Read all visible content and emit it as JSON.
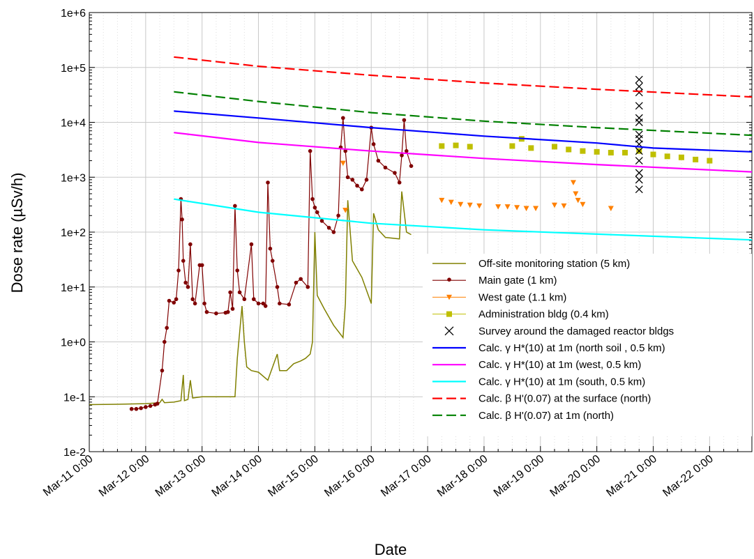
{
  "chart_data": {
    "type": "line",
    "xlabel": "Date",
    "ylabel": "Dose rate (µSv/h)",
    "yscale": "log",
    "ylim": [
      0.01,
      1000000
    ],
    "xlim": [
      "2011-03-11 00:00",
      "2011-03-22 18:00"
    ],
    "x_tick_labels": [
      "Mar-11 0:00",
      "Mar-12 0:00",
      "Mar-13 0:00",
      "Mar-14 0:00",
      "Mar-15 0:00",
      "Mar-16 0:00",
      "Mar-17 0:00",
      "Mar-18 0:00",
      "Mar-19 0:00",
      "Mar-20 0:00",
      "Mar-21 0:00",
      "Mar-22 0:00"
    ],
    "y_tick_labels": [
      "1e-2",
      "1e-1",
      "1e+0",
      "1e+1",
      "1e+2",
      "1e+3",
      "1e+4",
      "1e+5",
      "1e+6"
    ],
    "grid": true,
    "legend_position": "bottom-right",
    "series": [
      {
        "name": "Off-site monitoring station (5 km)",
        "color": "#808000",
        "style": "line",
        "marker": "none",
        "points": [
          [
            "2011-03-11 00:00",
            0.072
          ],
          [
            "2011-03-11 12:00",
            0.073
          ],
          [
            "2011-03-12 00:00",
            0.075
          ],
          [
            "2011-03-12 06:00",
            0.078
          ],
          [
            "2011-03-12 07:00",
            0.09
          ],
          [
            "2011-03-12 08:00",
            0.078
          ],
          [
            "2011-03-12 12:00",
            0.08
          ],
          [
            "2011-03-12 15:00",
            0.085
          ],
          [
            "2011-03-12 16:00",
            0.25
          ],
          [
            "2011-03-12 16:30",
            0.085
          ],
          [
            "2011-03-12 18:00",
            0.09
          ],
          [
            "2011-03-12 19:00",
            0.2
          ],
          [
            "2011-03-12 20:00",
            0.095
          ],
          [
            "2011-03-13 00:00",
            0.1
          ],
          [
            "2011-03-13 12:00",
            0.1
          ],
          [
            "2011-03-13 14:00",
            0.1
          ],
          [
            "2011-03-13 15:00",
            0.5
          ],
          [
            "2011-03-13 16:00",
            1.5
          ],
          [
            "2011-03-13 17:00",
            4.5
          ],
          [
            "2011-03-13 18:00",
            1.0
          ],
          [
            "2011-03-13 19:00",
            0.35
          ],
          [
            "2011-03-13 21:00",
            0.3
          ],
          [
            "2011-03-14 00:00",
            0.28
          ],
          [
            "2011-03-14 04:00",
            0.2
          ],
          [
            "2011-03-14 08:00",
            0.6
          ],
          [
            "2011-03-14 09:00",
            0.3
          ],
          [
            "2011-03-14 12:00",
            0.3
          ],
          [
            "2011-03-14 15:00",
            0.4
          ],
          [
            "2011-03-14 18:00",
            0.45
          ],
          [
            "2011-03-14 20:00",
            0.5
          ],
          [
            "2011-03-14 22:00",
            0.6
          ],
          [
            "2011-03-14 23:00",
            1.0
          ],
          [
            "2011-03-15 00:00",
            100
          ],
          [
            "2011-03-15 01:00",
            7
          ],
          [
            "2011-03-15 04:00",
            4
          ],
          [
            "2011-03-15 08:00",
            2
          ],
          [
            "2011-03-15 12:00",
            1.2
          ],
          [
            "2011-03-15 13:00",
            5
          ],
          [
            "2011-03-15 14:00",
            380
          ],
          [
            "2011-03-15 16:00",
            30
          ],
          [
            "2011-03-15 20:00",
            15
          ],
          [
            "2011-03-16 00:00",
            5
          ],
          [
            "2011-03-16 01:00",
            220
          ],
          [
            "2011-03-16 03:00",
            110
          ],
          [
            "2011-03-16 06:00",
            80
          ],
          [
            "2011-03-16 12:00",
            75
          ],
          [
            "2011-03-16 13:00",
            550
          ],
          [
            "2011-03-16 15:00",
            100
          ],
          [
            "2011-03-16 17:00",
            90
          ]
        ]
      },
      {
        "name": "Main gate (1 km)",
        "color": "#800000",
        "style": "line+marker",
        "marker": "dot",
        "points": [
          [
            "2011-03-11 18:00",
            0.06
          ],
          [
            "2011-03-11 20:00",
            0.06
          ],
          [
            "2011-03-11 22:00",
            0.062
          ],
          [
            "2011-03-12 00:00",
            0.065
          ],
          [
            "2011-03-12 02:00",
            0.068
          ],
          [
            "2011-03-12 04:00",
            0.072
          ],
          [
            "2011-03-12 05:00",
            0.075
          ],
          [
            "2011-03-12 07:00",
            0.3
          ],
          [
            "2011-03-12 08:00",
            1.0
          ],
          [
            "2011-03-12 09:00",
            1.8
          ],
          [
            "2011-03-12 10:00",
            5.6
          ],
          [
            "2011-03-12 12:00",
            5.2
          ],
          [
            "2011-03-12 13:00",
            6.0
          ],
          [
            "2011-03-12 14:00",
            20
          ],
          [
            "2011-03-12 15:00",
            400
          ],
          [
            "2011-03-12 15:30",
            170
          ],
          [
            "2011-03-12 16:00",
            30
          ],
          [
            "2011-03-12 17:00",
            12
          ],
          [
            "2011-03-12 18:00",
            10
          ],
          [
            "2011-03-12 19:00",
            60
          ],
          [
            "2011-03-12 20:00",
            6
          ],
          [
            "2011-03-12 21:00",
            5
          ],
          [
            "2011-03-12 23:00",
            25
          ],
          [
            "2011-03-13 00:00",
            25
          ],
          [
            "2011-03-13 01:00",
            5
          ],
          [
            "2011-03-13 02:00",
            3.5
          ],
          [
            "2011-03-13 06:00",
            3.3
          ],
          [
            "2011-03-13 10:00",
            3.4
          ],
          [
            "2011-03-13 11:00",
            3.5
          ],
          [
            "2011-03-13 12:00",
            8
          ],
          [
            "2011-03-13 13:00",
            4
          ],
          [
            "2011-03-13 14:00",
            300
          ],
          [
            "2011-03-13 15:00",
            20
          ],
          [
            "2011-03-13 16:00",
            8
          ],
          [
            "2011-03-13 18:00",
            6
          ],
          [
            "2011-03-13 21:00",
            60
          ],
          [
            "2011-03-13 22:00",
            6
          ],
          [
            "2011-03-14 00:00",
            5
          ],
          [
            "2011-03-14 02:00",
            5
          ],
          [
            "2011-03-14 03:00",
            4.5
          ],
          [
            "2011-03-14 04:00",
            800
          ],
          [
            "2011-03-14 05:00",
            50
          ],
          [
            "2011-03-14 06:00",
            30
          ],
          [
            "2011-03-14 08:00",
            10
          ],
          [
            "2011-03-14 09:00",
            5
          ],
          [
            "2011-03-14 13:00",
            4.8
          ],
          [
            "2011-03-14 16:00",
            12
          ],
          [
            "2011-03-14 18:00",
            14
          ],
          [
            "2011-03-14 21:00",
            10
          ],
          [
            "2011-03-14 22:00",
            3000
          ],
          [
            "2011-03-14 23:00",
            400
          ],
          [
            "2011-03-15 00:00",
            280
          ],
          [
            "2011-03-15 01:00",
            230
          ],
          [
            "2011-03-15 03:00",
            160
          ],
          [
            "2011-03-15 06:00",
            120
          ],
          [
            "2011-03-15 08:00",
            100
          ],
          [
            "2011-03-15 10:00",
            200
          ],
          [
            "2011-03-15 11:00",
            3500
          ],
          [
            "2011-03-15 12:00",
            12000
          ],
          [
            "2011-03-15 13:00",
            3000
          ],
          [
            "2011-03-15 14:00",
            1000
          ],
          [
            "2011-03-15 16:00",
            900
          ],
          [
            "2011-03-15 18:00",
            700
          ],
          [
            "2011-03-15 20:00",
            600
          ],
          [
            "2011-03-15 22:00",
            900
          ],
          [
            "2011-03-16 00:00",
            8000
          ],
          [
            "2011-03-16 01:00",
            4000
          ],
          [
            "2011-03-16 03:00",
            2000
          ],
          [
            "2011-03-16 06:00",
            1500
          ],
          [
            "2011-03-16 10:00",
            1200
          ],
          [
            "2011-03-16 12:00",
            800
          ],
          [
            "2011-03-16 13:00",
            2500
          ],
          [
            "2011-03-16 14:00",
            11000
          ],
          [
            "2011-03-16 15:00",
            3000
          ],
          [
            "2011-03-16 17:00",
            1600
          ]
        ]
      },
      {
        "name": "West gate  (1.1 km)",
        "color": "#ff8000",
        "style": "marker",
        "marker": "triangle-down",
        "points": [
          [
            "2011-03-15 12:00",
            1800
          ],
          [
            "2011-03-15 13:00",
            250
          ],
          [
            "2011-03-17 06:00",
            380
          ],
          [
            "2011-03-17 10:00",
            350
          ],
          [
            "2011-03-17 14:00",
            320
          ],
          [
            "2011-03-17 18:00",
            310
          ],
          [
            "2011-03-17 22:00",
            300
          ],
          [
            "2011-03-18 06:00",
            290
          ],
          [
            "2011-03-18 10:00",
            290
          ],
          [
            "2011-03-18 14:00",
            280
          ],
          [
            "2011-03-18 18:00",
            270
          ],
          [
            "2011-03-18 22:00",
            270
          ],
          [
            "2011-03-19 06:00",
            310
          ],
          [
            "2011-03-19 10:00",
            300
          ],
          [
            "2011-03-19 14:00",
            800
          ],
          [
            "2011-03-19 15:00",
            500
          ],
          [
            "2011-03-19 16:00",
            380
          ],
          [
            "2011-03-19 18:00",
            320
          ],
          [
            "2011-03-20 06:00",
            270
          ]
        ]
      },
      {
        "name": "Administration bldg (0.4 km)",
        "color": "#bfbf00",
        "style": "marker",
        "marker": "square",
        "points": [
          [
            "2011-03-17 06:00",
            3700
          ],
          [
            "2011-03-17 12:00",
            3800
          ],
          [
            "2011-03-17 18:00",
            3600
          ],
          [
            "2011-03-18 12:00",
            3700
          ],
          [
            "2011-03-18 16:00",
            5000
          ],
          [
            "2011-03-18 20:00",
            3400
          ],
          [
            "2011-03-19 06:00",
            3600
          ],
          [
            "2011-03-19 12:00",
            3200
          ],
          [
            "2011-03-19 18:00",
            3000
          ],
          [
            "2011-03-20 00:00",
            2900
          ],
          [
            "2011-03-20 06:00",
            2800
          ],
          [
            "2011-03-20 12:00",
            2800
          ],
          [
            "2011-03-20 18:00",
            3000
          ],
          [
            "2011-03-21 00:00",
            2600
          ],
          [
            "2011-03-21 06:00",
            2400
          ],
          [
            "2011-03-21 12:00",
            2300
          ],
          [
            "2011-03-21 18:00",
            2100
          ],
          [
            "2011-03-22 00:00",
            2000
          ]
        ]
      },
      {
        "name": "Survey around the damaged reactor bldgs",
        "color": "#000000",
        "style": "marker",
        "marker": "x",
        "points": [
          [
            "2011-03-20 18:00",
            600
          ],
          [
            "2011-03-20 18:00",
            900
          ],
          [
            "2011-03-20 18:00",
            1200
          ],
          [
            "2011-03-20 18:00",
            2000
          ],
          [
            "2011-03-20 18:00",
            3000
          ],
          [
            "2011-03-20 18:00",
            4000
          ],
          [
            "2011-03-20 18:00",
            5000
          ],
          [
            "2011-03-20 18:00",
            6000
          ],
          [
            "2011-03-20 18:00",
            10000
          ],
          [
            "2011-03-20 18:00",
            12000
          ],
          [
            "2011-03-20 18:00",
            20000
          ],
          [
            "2011-03-20 18:00",
            35000
          ],
          [
            "2011-03-20 18:00",
            45000
          ],
          [
            "2011-03-20 18:00",
            60000
          ]
        ]
      },
      {
        "name": "Calc. γ H*(10) at 1m (north soil , 0.5 km)",
        "color": "#0000ff",
        "style": "line",
        "marker": "none",
        "points": [
          [
            "2011-03-12 12:00",
            16000
          ],
          [
            "2011-03-14 00:00",
            12000
          ],
          [
            "2011-03-16 00:00",
            8000
          ],
          [
            "2011-03-18 00:00",
            5600
          ],
          [
            "2011-03-20 00:00",
            4200
          ],
          [
            "2011-03-21 00:00",
            3400
          ],
          [
            "2011-03-22 18:00",
            2900
          ]
        ]
      },
      {
        "name": "Calc. γ H*(10) at 1m (west, 0.5 km)",
        "color": "#ff00ff",
        "style": "line",
        "marker": "none",
        "points": [
          [
            "2011-03-12 12:00",
            6500
          ],
          [
            "2011-03-14 00:00",
            4300
          ],
          [
            "2011-03-16 00:00",
            3000
          ],
          [
            "2011-03-18 00:00",
            2200
          ],
          [
            "2011-03-20 00:00",
            1700
          ],
          [
            "2011-03-22 18:00",
            1250
          ]
        ]
      },
      {
        "name": "Calc. γ H*(10) at 1m (south, 0.5 km)",
        "color": "#00ffff",
        "style": "line",
        "marker": "none",
        "points": [
          [
            "2011-03-12 12:00",
            400
          ],
          [
            "2011-03-14 00:00",
            230
          ],
          [
            "2011-03-16 00:00",
            145
          ],
          [
            "2011-03-18 00:00",
            110
          ],
          [
            "2011-03-20 00:00",
            92
          ],
          [
            "2011-03-22 18:00",
            72
          ]
        ]
      },
      {
        "name": "Calc. β H'(0.07) at the surface (north)",
        "color": "#ff0000",
        "style": "dashed",
        "marker": "none",
        "points": [
          [
            "2011-03-12 12:00",
            155000
          ],
          [
            "2011-03-14 00:00",
            105000
          ],
          [
            "2011-03-16 00:00",
            72000
          ],
          [
            "2011-03-18 00:00",
            52000
          ],
          [
            "2011-03-20 00:00",
            40000
          ],
          [
            "2011-03-22 18:00",
            29000
          ]
        ]
      },
      {
        "name": "Calc. β H'(0.07) at 1m (north)",
        "color": "#008000",
        "style": "dashed",
        "marker": "none",
        "points": [
          [
            "2011-03-12 12:00",
            36000
          ],
          [
            "2011-03-14 00:00",
            24000
          ],
          [
            "2011-03-16 00:00",
            15000
          ],
          [
            "2011-03-18 00:00",
            10500
          ],
          [
            "2011-03-20 00:00",
            8000
          ],
          [
            "2011-03-22 18:00",
            5800
          ]
        ]
      }
    ]
  }
}
